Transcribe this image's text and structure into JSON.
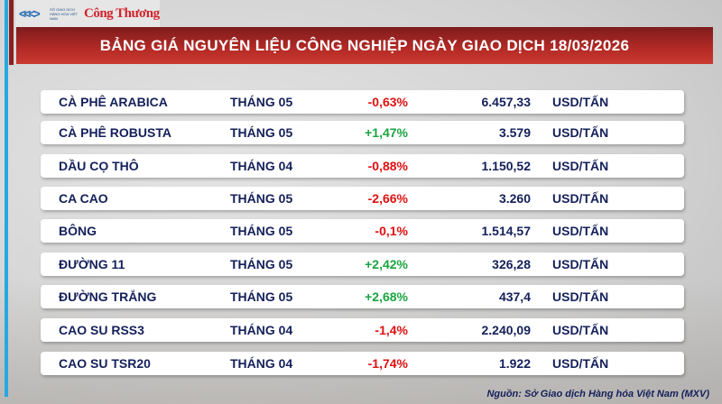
{
  "logo": {
    "org": "SỞ GIAO DỊCH HÀNG HÓA VIỆT NAM",
    "brand": "Công Thương"
  },
  "title": "BẢNG GIÁ NGUYÊN LIỆU CÔNG NGHIỆP NGÀY GIAO DỊCH 18/03/2026",
  "colors": {
    "negative": "#e01010",
    "positive": "#1aa540",
    "banner": "#b52a26",
    "text": "#14205a"
  },
  "rows": [
    {
      "name": "CÀ PHÊ ARABICA",
      "month": "THÁNG 05",
      "change": "-0,63%",
      "price": "6.457,33",
      "unit": "USD/TẤN"
    },
    {
      "name": "CÀ PHÊ ROBUSTA",
      "month": "THÁNG 05",
      "change": "+1,47%",
      "price": "3.579",
      "unit": "USD/TẤN"
    },
    {
      "name": "DẦU CỌ THÔ",
      "month": "THÁNG 04",
      "change": "-0,88%",
      "price": "1.150,52",
      "unit": "USD/TẤN"
    },
    {
      "name": "CA CAO",
      "month": "THÁNG 05",
      "change": "-2,66%",
      "price": "3.260",
      "unit": "USD/TẤN"
    },
    {
      "name": "BÔNG",
      "month": "THÁNG 05",
      "change": "-0,1%",
      "price": "1.514,57",
      "unit": "USD/TẤN"
    },
    {
      "name": "ĐƯỜNG 11",
      "month": "THÁNG 05",
      "change": "+2,42%",
      "price": "326,28",
      "unit": "USD/TẤN"
    },
    {
      "name": "ĐƯỜNG TRẮNG",
      "month": "THÁNG 05",
      "change": "+2,68%",
      "price": "437,4",
      "unit": "USD/TẤN"
    },
    {
      "name": "CAO SU RSS3",
      "month": "THÁNG 04",
      "change": "-1,4%",
      "price": "2.240,09",
      "unit": "USD/TẤN"
    },
    {
      "name": "CAO SU TSR20",
      "month": "THÁNG 04",
      "change": "-1,74%",
      "price": "1.922",
      "unit": "USD/TẤN"
    }
  ],
  "source": "Nguồn: Sở Giao dịch Hàng hóa Việt Nam (MXV)"
}
